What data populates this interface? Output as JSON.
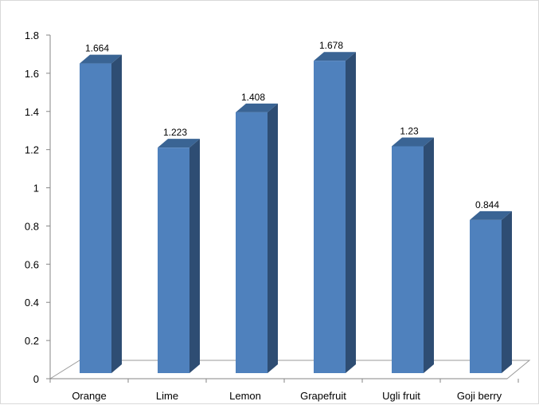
{
  "chart_data": {
    "type": "bar",
    "style": "3d-column",
    "categories": [
      "Orange",
      "Lime",
      "Lemon",
      "Grapefruit",
      "Ugli fruit",
      "Goji berry"
    ],
    "values": [
      1.664,
      1.223,
      1.408,
      1.678,
      1.23,
      0.844
    ],
    "data_labels": [
      "1.664",
      "1.223",
      "1.408",
      "1.678",
      "1.23",
      "0.844"
    ],
    "title": "",
    "xlabel": "",
    "ylabel": "",
    "ylim": [
      0,
      1.8
    ],
    "yticks": [
      0,
      0.2,
      0.4,
      0.6,
      0.8,
      1,
      1.2,
      1.4,
      1.6,
      1.8
    ],
    "ytick_labels": [
      "0",
      "0.2",
      "0.4",
      "0.6",
      "0.8",
      "1",
      "1.2",
      "1.4",
      "1.6",
      "1.8"
    ],
    "grid": false,
    "legend": "none",
    "colors": {
      "bar_front": "#4f81bd",
      "bar_side": "#2e4d73",
      "bar_top": "#3a6494",
      "axis": "#868686",
      "floor": "#9a9a9a"
    }
  }
}
